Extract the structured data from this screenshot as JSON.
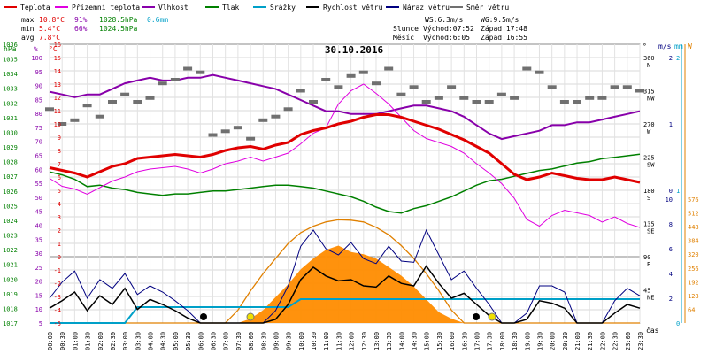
{
  "chart_data": {
    "type": "line",
    "date": "30.10.2016",
    "legend": [
      {
        "key": "teplota",
        "label": "Teplota",
        "color": "#e00000"
      },
      {
        "key": "pocitova",
        "label": "Přízemní teplota",
        "color": "#e000e0"
      },
      {
        "key": "vlhkost",
        "label": "Vlhkost",
        "color": "#8800aa"
      },
      {
        "key": "tlak",
        "label": "Tlak",
        "color": "#008000"
      },
      {
        "key": "srazky",
        "label": "Srážky",
        "color": "#00a0c8"
      },
      {
        "key": "rychlost",
        "label": "Rychlost větru",
        "color": "#000000"
      },
      {
        "key": "naraz",
        "label": "Náraz větru",
        "color": "#000080"
      },
      {
        "key": "smer",
        "label": "Směr větru",
        "color": "#707070"
      }
    ],
    "stats": {
      "max": {
        "label": "max",
        "temp": "10.8°C",
        "hum": "91%",
        "press": "1028.5hPa",
        "rain": "0.6mm"
      },
      "min": {
        "label": "min",
        "temp": "5.4°C",
        "hum": "66%",
        "press": "1024.5hPa"
      },
      "avg": {
        "label": "avg",
        "temp": "7.8°C"
      }
    },
    "info": {
      "ws": "WS:6.3m/s",
      "wg": "WG:9.5m/s",
      "slunce": "Slunce",
      "slunce_vychod": "Východ:07:52",
      "slunce_zapad": "Západ:17:48",
      "mesic": "Měsíc",
      "mesic_vychod": "Východ:6:05",
      "mesic_zapad": "Západ:16:55"
    },
    "x_label": "čas",
    "x_ticks": [
      "00:00",
      "00:30",
      "01:00",
      "01:30",
      "02:00",
      "02:30",
      "03:00",
      "03:30",
      "04:00",
      "04:30",
      "05:00",
      "05:30",
      "06:00",
      "06:30",
      "07:00",
      "07:30",
      "08:00",
      "08:30",
      "09:00",
      "09:30",
      "10:00",
      "10:30",
      "11:00",
      "11:30",
      "12:00",
      "12:30",
      "13:00",
      "13:30",
      "14:00",
      "14:30",
      "15:00",
      "15:30",
      "16:00",
      "16:30",
      "17:00",
      "17:30",
      "18:00",
      "18:30",
      "19:00",
      "19:30",
      "20:00",
      "20:30",
      "21:00",
      "21:30",
      "22:00",
      "22:30",
      "23:00",
      "23:30"
    ],
    "axes": {
      "hpa": {
        "label": "hPa",
        "color": "#008000",
        "min": 1017,
        "max": 1036
      },
      "pct": {
        "label": "%",
        "color": "#8800aa",
        "ticks": [
          "100",
          "95",
          "90",
          "85",
          "80",
          "75",
          "70",
          "65",
          "60",
          "55",
          "50",
          "45",
          "40",
          "35",
          "30",
          "25",
          "20",
          "15",
          "10",
          "5"
        ]
      },
      "temp": {
        "label": "°C",
        "color": "#e00000",
        "min": -5,
        "max": 16
      },
      "dir": {
        "label": "°",
        "ticks": [
          {
            "v": "360",
            "s": "N"
          },
          {
            "v": "315",
            "s": "NW"
          },
          {
            "v": "270",
            "s": "W"
          },
          {
            "v": "225",
            "s": "SW"
          },
          {
            "v": "180",
            "s": "S"
          },
          {
            "v": "135",
            "s": "SE"
          },
          {
            "v": "90",
            "s": "E"
          },
          {
            "v": "45",
            "s": "NE"
          }
        ]
      },
      "ms": {
        "label": "m/s",
        "color": "#000080",
        "ticks": [
          "2",
          "1",
          "0",
          "10",
          "8",
          "6",
          "4",
          "2"
        ]
      },
      "mm": {
        "label": "mm",
        "color": "#00a0c8",
        "ticks": [
          "2",
          "1",
          "0"
        ]
      },
      "w": {
        "label": "W",
        "color": "#e08000",
        "ticks": [
          "576",
          "512",
          "448",
          "384",
          "320",
          "256",
          "192",
          "128",
          "64"
        ]
      }
    },
    "series": {
      "teplota_h": [
        6.7,
        6.5,
        6.3,
        6.0,
        6.4,
        6.8,
        7.0,
        7.4,
        7.5,
        7.6,
        7.7,
        7.6,
        7.5,
        7.7,
        8.0,
        8.2,
        8.3,
        8.1,
        8.4,
        8.6,
        9.2,
        9.5,
        9.7,
        10.0,
        10.2,
        10.5,
        10.7,
        10.7,
        10.5,
        10.2,
        9.9,
        9.6,
        9.2,
        8.8,
        8.3,
        7.8,
        7.0,
        6.2,
        5.8,
        6.0,
        6.3,
        6.1,
        5.9,
        5.8,
        5.8,
        6.0,
        5.8,
        5.6
      ],
      "pocitova_h": [
        5.9,
        5.3,
        5.1,
        4.7,
        5.2,
        5.7,
        6.0,
        6.4,
        6.6,
        6.7,
        6.8,
        6.6,
        6.3,
        6.6,
        7.0,
        7.2,
        7.5,
        7.2,
        7.5,
        7.8,
        8.5,
        9.3,
        9.7,
        11.5,
        12.5,
        13.0,
        12.3,
        11.5,
        10.5,
        9.5,
        8.9,
        8.6,
        8.3,
        7.8,
        7.0,
        6.3,
        5.5,
        4.4,
        2.8,
        2.3,
        3.1,
        3.5,
        3.3,
        3.1,
        2.6,
        3.0,
        2.5,
        2.2
      ],
      "vlhkost_h": [
        83,
        82,
        81,
        82,
        82,
        84,
        86,
        87,
        88,
        87,
        87,
        88,
        88,
        89,
        88,
        87,
        86,
        85,
        84,
        82,
        80,
        78,
        76,
        76,
        75,
        75,
        75,
        76,
        77,
        78,
        78,
        77,
        76,
        74,
        71,
        68,
        66,
        67,
        68,
        69,
        71,
        71,
        72,
        72,
        73,
        74,
        75,
        76
      ],
      "tlak_h": [
        1027.3,
        1027.1,
        1026.8,
        1026.3,
        1026.4,
        1026.2,
        1026.1,
        1025.9,
        1025.8,
        1025.7,
        1025.8,
        1025.8,
        1025.9,
        1026.0,
        1026.0,
        1026.1,
        1026.2,
        1026.3,
        1026.4,
        1026.4,
        1026.3,
        1026.2,
        1026.0,
        1025.8,
        1025.6,
        1025.3,
        1024.9,
        1024.6,
        1024.5,
        1024.8,
        1025.0,
        1025.3,
        1025.6,
        1026.0,
        1026.4,
        1026.7,
        1026.8,
        1027.0,
        1027.2,
        1027.4,
        1027.5,
        1027.7,
        1027.9,
        1028.0,
        1028.2,
        1028.3,
        1028.4,
        1028.5
      ],
      "srazky_mm": [
        0,
        0,
        0,
        0,
        0,
        0,
        0.0,
        0.4,
        0.4,
        0.4,
        0.4,
        0.4,
        0.4,
        0.4,
        0.4,
        0.4,
        0.4,
        0.4,
        0.4,
        0.4,
        0.6,
        0.6,
        0.6,
        0.6,
        0.6,
        0.6,
        0.6,
        0.6,
        0.6,
        0.6,
        0.6,
        0.6,
        0.6,
        0.6,
        0.6,
        0.6,
        0.6,
        0.6,
        0.6,
        0.6,
        0.6,
        0.6,
        0.6,
        0.6,
        0.6,
        0.6,
        0.6,
        0.6
      ],
      "rychlost_ms": [
        1.2,
        1.8,
        2.5,
        1.0,
        2.2,
        1.5,
        2.8,
        1.1,
        1.9,
        1.5,
        1.0,
        0.4,
        0.0,
        0.0,
        0.0,
        0.0,
        0.0,
        0.0,
        0.3,
        1.5,
        3.5,
        4.5,
        3.8,
        3.4,
        3.5,
        3.0,
        2.9,
        3.8,
        3.2,
        3.0,
        4.6,
        3.2,
        2.0,
        2.4,
        1.5,
        0.6,
        0.0,
        0.0,
        0.3,
        1.8,
        1.6,
        1.2,
        0.0,
        0.0,
        0.0,
        0.8,
        1.5,
        1.2
      ],
      "naraz_ms": [
        2.0,
        3.3,
        4.2,
        2.0,
        3.5,
        2.8,
        4.0,
        2.3,
        3.0,
        2.5,
        1.8,
        1.0,
        0.0,
        0.0,
        0.0,
        0.0,
        0.0,
        0.0,
        1.0,
        3.0,
        6.2,
        7.5,
        6.0,
        5.5,
        6.5,
        5.2,
        4.8,
        6.2,
        5.0,
        4.9,
        7.5,
        5.5,
        3.5,
        4.2,
        2.8,
        1.5,
        0.0,
        0.0,
        0.8,
        3.0,
        3.0,
        2.5,
        0.0,
        0.0,
        0.0,
        1.8,
        2.8,
        2.2
      ],
      "smer_deg": [
        290,
        270,
        275,
        295,
        280,
        300,
        310,
        300,
        305,
        325,
        330,
        345,
        340,
        255,
        260,
        265,
        250,
        275,
        280,
        290,
        315,
        300,
        330,
        320,
        335,
        340,
        325,
        345,
        310,
        320,
        300,
        305,
        320,
        305,
        300,
        300,
        310,
        305,
        345,
        340,
        320,
        300,
        300,
        305,
        305,
        320,
        320,
        315
      ],
      "radiace_w": [
        0,
        0,
        0,
        0,
        0,
        0,
        0,
        0,
        0,
        0,
        0,
        0,
        0,
        0,
        0,
        0,
        20,
        60,
        120,
        180,
        250,
        300,
        340,
        360,
        330,
        320,
        300,
        260,
        220,
        170,
        110,
        50,
        20,
        0,
        0,
        0,
        0,
        0,
        0,
        0,
        0,
        0,
        0,
        0,
        0,
        0,
        0,
        0
      ],
      "radiace_max_w": [
        0,
        0,
        0,
        0,
        0,
        0,
        0,
        0,
        0,
        0,
        0,
        0,
        0,
        0,
        0,
        60,
        150,
        230,
        300,
        370,
        420,
        450,
        470,
        480,
        478,
        470,
        445,
        410,
        360,
        300,
        230,
        150,
        60,
        0,
        0,
        0,
        0,
        0,
        0,
        0,
        0,
        0,
        0,
        0,
        0,
        0,
        0,
        0
      ]
    }
  }
}
